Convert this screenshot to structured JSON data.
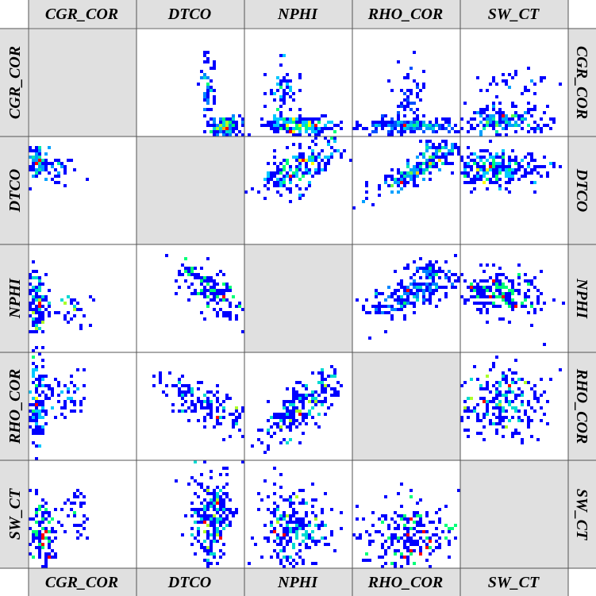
{
  "chart_data": {
    "type": "scatter-matrix",
    "title": "",
    "variables": [
      "CGR_COR",
      "DTCO",
      "NPHI",
      "RHO_COR",
      "SW_CT"
    ],
    "diagonal": "empty",
    "encoding": "2D density heatmap (counts per cell, blue = low, red = high)",
    "colors": {
      "header_bg": "#e0e0e0",
      "diagonal_bg": "#e0e0e0",
      "grid_line": "#555555",
      "density_low": "#0000ff",
      "density_mid": "#00ffff",
      "density_high": "#ff0000"
    },
    "labels": {
      "top": [
        "CGR_COR",
        "DTCO",
        "NPHI",
        "RHO_COR",
        "SW_CT"
      ],
      "bottom": [
        "CGR_COR",
        "DTCO",
        "NPHI",
        "RHO_COR",
        "SW_CT"
      ],
      "left": [
        "CGR_COR",
        "DTCO",
        "NPHI",
        "RHO_COR",
        "SW_CT"
      ],
      "right": [
        "CGR_COR",
        "DTCO",
        "NPHI",
        "RHO_COR",
        "SW_CT"
      ]
    }
  }
}
